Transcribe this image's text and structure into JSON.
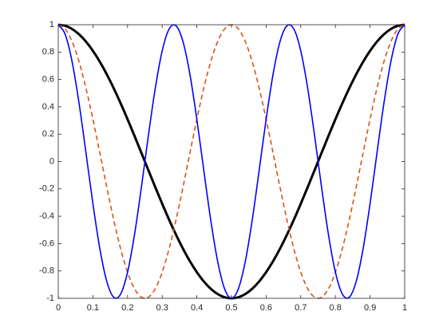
{
  "chart_data": {
    "type": "line",
    "x": [
      0,
      0.02,
      0.04,
      0.06,
      0.08,
      0.1,
      0.12,
      0.14,
      0.16,
      0.18,
      0.2,
      0.22,
      0.24,
      0.26,
      0.28,
      0.3,
      0.32,
      0.34,
      0.36,
      0.38,
      0.4,
      0.42,
      0.44,
      0.46,
      0.48,
      0.5,
      0.52,
      0.54,
      0.56,
      0.58,
      0.6,
      0.62,
      0.64,
      0.66,
      0.68,
      0.7,
      0.72,
      0.74,
      0.76,
      0.78,
      0.8,
      0.82,
      0.84,
      0.86,
      0.88,
      0.9,
      0.92,
      0.94,
      0.96,
      0.98,
      1
    ],
    "series": [
      {
        "color": "#000000",
        "linewidth": 3,
        "linestyle": "solid",
        "values": [
          1,
          0.9921,
          0.9686,
          0.9298,
          0.8763,
          0.809,
          0.729,
          0.6374,
          0.5358,
          0.4258,
          0.309,
          0.1874,
          0.0628,
          -0.0628,
          -0.1874,
          -0.309,
          -0.4258,
          -0.5358,
          -0.6374,
          -0.729,
          -0.809,
          -0.8763,
          -0.9298,
          -0.9686,
          -0.9921,
          -1,
          -0.9921,
          -0.9686,
          -0.9298,
          -0.8763,
          -0.809,
          -0.729,
          -0.6374,
          -0.5358,
          -0.4258,
          -0.309,
          -0.1874,
          -0.0628,
          0.0628,
          0.1874,
          0.309,
          0.4258,
          0.5358,
          0.6374,
          0.729,
          0.809,
          0.8763,
          0.9298,
          0.9686,
          0.9921,
          1
        ]
      },
      {
        "color": "#D95319",
        "linewidth": 1.6,
        "linestyle": "dash",
        "values": [
          1,
          0.9686,
          0.8763,
          0.729,
          0.5358,
          0.309,
          0.0628,
          -0.1874,
          -0.4258,
          -0.6374,
          -0.809,
          -0.9298,
          -0.9921,
          -0.9921,
          -0.9298,
          -0.809,
          -0.6374,
          -0.4258,
          -0.1874,
          0.0628,
          0.309,
          0.5358,
          0.729,
          0.8763,
          0.9686,
          1,
          0.9686,
          0.8763,
          0.729,
          0.5358,
          0.309,
          0.0628,
          -0.1874,
          -0.4258,
          -0.6374,
          -0.809,
          -0.9298,
          -0.9921,
          -0.9921,
          -0.9298,
          -0.809,
          -0.6374,
          -0.4258,
          -0.1874,
          0.0628,
          0.309,
          0.5358,
          0.729,
          0.8763,
          0.9686,
          1
        ]
      },
      {
        "color": "#0000FF",
        "linewidth": 1.6,
        "linestyle": "solid",
        "values": [
          1,
          0.9298,
          0.729,
          0.4258,
          0.0628,
          -0.309,
          -0.6374,
          -0.8763,
          -0.9921,
          -0.9686,
          -0.809,
          -0.5358,
          -0.1874,
          0.1874,
          0.5358,
          0.809,
          0.9686,
          0.9921,
          0.8763,
          0.6374,
          0.309,
          -0.0628,
          -0.4258,
          -0.729,
          -0.9298,
          -1,
          -0.9298,
          -0.729,
          -0.4258,
          -0.0628,
          0.309,
          0.6374,
          0.8763,
          0.9921,
          0.9686,
          0.809,
          0.5358,
          0.1874,
          -0.1874,
          -0.5358,
          -0.809,
          -0.9686,
          -0.9921,
          -0.8763,
          -0.6374,
          -0.309,
          0.0628,
          0.4258,
          0.729,
          0.9298,
          1
        ]
      }
    ],
    "xlim": [
      0,
      1
    ],
    "xticks": [
      0,
      0.1,
      0.2,
      0.3,
      0.4,
      0.5,
      0.6,
      0.7,
      0.8,
      0.9,
      1
    ],
    "ylim": [
      -1,
      1
    ],
    "yticks": [
      -1,
      -0.8,
      -0.6,
      -0.4,
      -0.2,
      0,
      0.2,
      0.4,
      0.6,
      0.8,
      1
    ],
    "grid": false
  }
}
